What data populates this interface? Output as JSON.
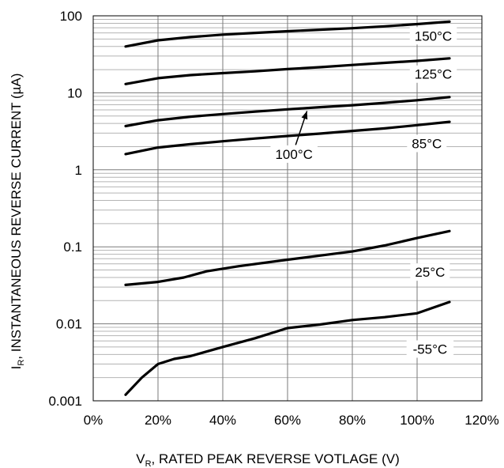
{
  "chart_data": {
    "type": "line",
    "x_tick_labels": [
      "0%",
      "20%",
      "40%",
      "60%",
      "80%",
      "100%",
      "120%"
    ],
    "y_tick_labels": [
      "0.001",
      "0.01",
      "0.1",
      "1",
      "10",
      "100"
    ],
    "xlim": [
      0,
      120
    ],
    "ylim": [
      0.001,
      100
    ],
    "y_scale": "log",
    "grid": true,
    "x_label_main": "V",
    "x_label_sub": "R",
    "x_label_rest": ", RATED PEAK REVERSE VOTLAGE (V)",
    "y_label_main": "I",
    "y_label_sub": "R",
    "y_label_rest": ", INSTANTANEOUS REVERSE CURRENT (µA)",
    "series": [
      {
        "name": "150°C",
        "x": [
          10,
          20,
          30,
          40,
          50,
          60,
          70,
          80,
          90,
          100,
          110
        ],
        "y": [
          40,
          48,
          53,
          57,
          60,
          63,
          66,
          69,
          73,
          78,
          84
        ]
      },
      {
        "name": "125°C",
        "x": [
          10,
          20,
          30,
          40,
          50,
          60,
          70,
          80,
          90,
          100,
          110
        ],
        "y": [
          13,
          15.5,
          17,
          18,
          19,
          20.3,
          21.5,
          23,
          24.5,
          26,
          28
        ]
      },
      {
        "name": "100°C",
        "x": [
          10,
          20,
          30,
          40,
          50,
          60,
          70,
          80,
          90,
          100,
          110
        ],
        "y": [
          3.7,
          4.4,
          4.9,
          5.3,
          5.7,
          6.1,
          6.5,
          6.9,
          7.4,
          8.0,
          8.8
        ]
      },
      {
        "name": "85°C",
        "x": [
          10,
          20,
          30,
          40,
          50,
          60,
          70,
          80,
          90,
          100,
          110
        ],
        "y": [
          1.6,
          1.95,
          2.15,
          2.35,
          2.55,
          2.75,
          2.95,
          3.2,
          3.45,
          3.8,
          4.2
        ]
      },
      {
        "name": "25°C",
        "x": [
          10,
          20,
          28,
          35,
          45,
          60,
          70,
          80,
          90,
          100,
          110
        ],
        "y": [
          0.032,
          0.035,
          0.04,
          0.048,
          0.056,
          0.068,
          0.077,
          0.087,
          0.104,
          0.13,
          0.16
        ]
      },
      {
        "name": "-55°C",
        "x": [
          10,
          15,
          20,
          25,
          30,
          40,
          50,
          60,
          70,
          80,
          90,
          100,
          110
        ],
        "y": [
          0.0012,
          0.002,
          0.003,
          0.0035,
          0.0038,
          0.005,
          0.0065,
          0.0088,
          0.0098,
          0.0112,
          0.0122,
          0.0137,
          0.0192
        ]
      }
    ]
  }
}
